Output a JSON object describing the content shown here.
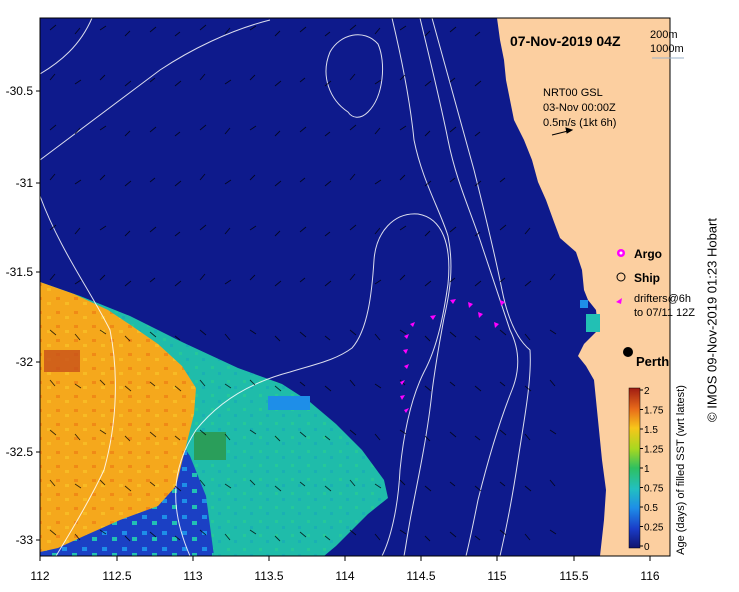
{
  "map": {
    "title": "07-Nov-2019 04Z",
    "depth_labels": [
      "200m",
      "1000m"
    ],
    "current_info": [
      "NRT00 GSL",
      "03-Nov 00:00Z",
      "0.5m/s (1kt 6h)"
    ],
    "legend": {
      "argo": "Argo",
      "ship": "Ship",
      "drifters_line1": "drifters@6h",
      "drifters_line2": "to 07/11 12Z"
    },
    "city": "Perth",
    "colorbar": {
      "title": "Age (days) of filled SST (wrt latest)",
      "ticks": [
        "2",
        "1.75",
        "1.5",
        "1.25",
        "1",
        "0.75",
        "0.5",
        "0.25",
        "0"
      ]
    },
    "y_ticks": [
      "-30.5",
      "-31",
      "-31.5",
      "-32",
      "-32.5",
      "-33"
    ],
    "x_ticks": [
      "112",
      "112.5",
      "113",
      "113.5",
      "114",
      "114.5",
      "115",
      "115.5",
      "116"
    ],
    "credit": "© IMOS 09-Nov-2019 01:23 Hobart",
    "colors": {
      "ocean": "#0e1a8c",
      "land": "#fccfa0",
      "orange": "#f5a81c",
      "teal": "#1fbcaa",
      "drifter": "#ff00ff"
    }
  }
}
